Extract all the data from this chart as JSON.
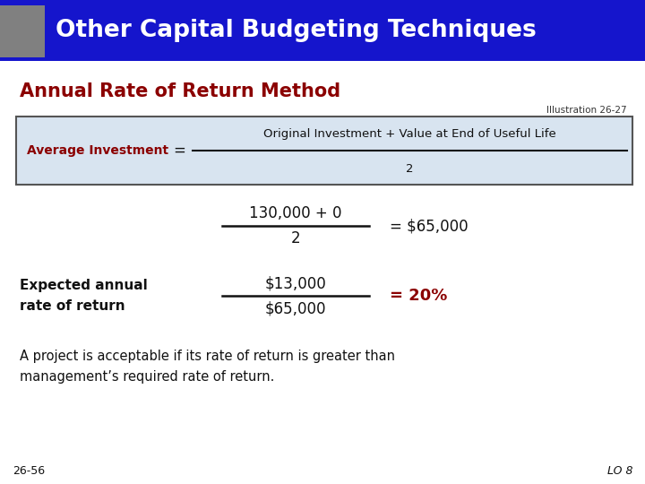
{
  "title_text": "Other Capital Budgeting Techniques",
  "title_bg_color": "#1515CC",
  "title_text_color": "#FFFFFF",
  "title_sidebar_color": "#808080",
  "subtitle_text": "Annual Rate of Return Method",
  "subtitle_color": "#8B0000",
  "illustration_label": "Illustration 26-27",
  "formula_box_bg": "#D8E4F0",
  "formula_box_border": "#555555",
  "formula_left_label": "Average Investment",
  "formula_left_color": "#8B0000",
  "formula_numerator": "Original Investment + Value at End of Useful Life",
  "formula_denominator": "2",
  "calc_numerator": "130,000 + 0",
  "calc_denominator": "2",
  "calc_result": "= $65,000",
  "label_expected": "Expected annual\nrate of return",
  "rate_numerator": "$13,000",
  "rate_denominator": "$65,000",
  "rate_result": "= 20%",
  "rate_result_color": "#8B0000",
  "note_text": "A project is acceptable if its rate of return is greater than\nmanagement’s required rate of return.",
  "footer_left": "26-56",
  "footer_right": "LO 8",
  "bg_color": "#FFFFFF"
}
